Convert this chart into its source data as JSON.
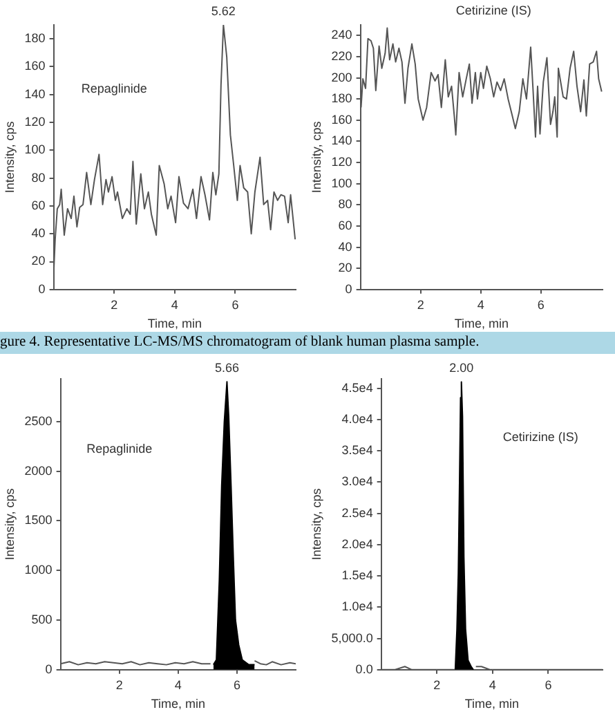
{
  "chart_data": [
    {
      "type": "line",
      "xlabel": "Time, min",
      "ylabel": "Intensity, cps",
      "xlim": [
        0,
        8
      ],
      "xticks": [
        2,
        4,
        6
      ],
      "ylim": [
        0,
        190
      ],
      "yticks": [
        0,
        20,
        40,
        60,
        80,
        100,
        120,
        140,
        160,
        180
      ],
      "grid": false,
      "legend": false,
      "marker": "none",
      "annotations": [
        "Repaglinide",
        {
          "text": "5.62",
          "x": 5.61,
          "y": 190
        }
      ],
      "series": [
        {
          "color": "#555555",
          "x": [
            0,
            0.05,
            0.12,
            0.2,
            0.25,
            0.35,
            0.46,
            0.58,
            0.67,
            0.77,
            0.86,
            0.97,
            1.09,
            1.23,
            1.35,
            1.5,
            1.62,
            1.73,
            1.81,
            1.93,
            2.04,
            2.11,
            2.27,
            2.42,
            2.53,
            2.62,
            2.73,
            2.88,
            3.0,
            3.13,
            3.23,
            3.39,
            3.49,
            3.65,
            3.77,
            3.88,
            4.03,
            4.14,
            4.29,
            4.44,
            4.6,
            4.72,
            4.87,
            5.0,
            5.15,
            5.26,
            5.36,
            5.46,
            5.53,
            5.61,
            5.72,
            5.84,
            5.95,
            6.07,
            6.16,
            6.28,
            6.41,
            6.53,
            6.65,
            6.82,
            6.94,
            7.07,
            7.17,
            7.28,
            7.4,
            7.51,
            7.63,
            7.75,
            7.83,
            7.98
          ],
          "values": [
            11,
            36,
            58,
            61,
            72,
            39,
            58,
            51,
            67,
            45,
            59,
            61,
            84,
            61,
            79,
            97,
            61,
            79,
            70,
            81,
            64,
            70,
            51,
            58,
            54,
            92,
            47,
            83,
            58,
            70,
            54,
            39,
            89,
            76,
            58,
            67,
            48,
            81,
            62,
            58,
            72,
            51,
            81,
            68,
            50,
            84,
            68,
            83,
            147,
            190,
            167,
            111,
            89,
            64,
            89,
            73,
            70,
            40,
            70,
            95,
            61,
            64,
            43,
            70,
            64,
            68,
            67,
            48,
            68,
            36
          ]
        }
      ]
    },
    {
      "type": "line",
      "xlabel": "Time, min",
      "ylabel": "Intensity, cps",
      "xlim": [
        0,
        8.05
      ],
      "xticks": [
        2,
        4,
        6
      ],
      "ylim": [
        0,
        250
      ],
      "yticks": [
        0,
        20,
        40,
        60,
        80,
        100,
        120,
        140,
        160,
        180,
        200,
        220,
        240
      ],
      "grid": false,
      "legend": false,
      "marker": "none",
      "annotations": [
        "Cetirizine (IS)"
      ],
      "series": [
        {
          "color": "#555555",
          "x": [
            0.02,
            0.08,
            0.17,
            0.25,
            0.35,
            0.43,
            0.51,
            0.62,
            0.71,
            0.82,
            0.89,
            0.97,
            1.08,
            1.17,
            1.28,
            1.38,
            1.48,
            1.58,
            1.71,
            1.82,
            1.92,
            2.08,
            2.2,
            2.35,
            2.48,
            2.58,
            2.69,
            2.82,
            2.92,
            3.03,
            3.12,
            3.17,
            3.28,
            3.4,
            3.51,
            3.62,
            3.71,
            3.82,
            3.89,
            4.0,
            4.09,
            4.2,
            4.32,
            4.43,
            4.54,
            4.66,
            4.78,
            4.91,
            5.05,
            5.15,
            5.28,
            5.4,
            5.52,
            5.66,
            5.74,
            5.82,
            5.89,
            5.97,
            6.08,
            6.2,
            6.32,
            6.4,
            6.46,
            6.54,
            6.58,
            6.74,
            6.85,
            6.97,
            7.09,
            7.2,
            7.32,
            7.43,
            7.51,
            7.62,
            7.74,
            7.85,
            7.92,
            8.02
          ],
          "values": [
            172,
            199,
            190,
            237,
            235,
            228,
            188,
            230,
            209,
            223,
            247,
            217,
            232,
            215,
            228,
            215,
            176,
            209,
            232,
            213,
            180,
            160,
            172,
            205,
            197,
            203,
            172,
            217,
            182,
            192,
            164,
            146,
            205,
            182,
            198,
            213,
            176,
            205,
            180,
            205,
            190,
            211,
            199,
            182,
            196,
            188,
            199,
            180,
            164,
            152,
            168,
            199,
            180,
            229,
            188,
            144,
            192,
            147,
            196,
            219,
            156,
            168,
            182,
            144,
            209,
            182,
            180,
            209,
            225,
            192,
            168,
            198,
            164,
            213,
            215,
            225,
            199,
            187
          ]
        }
      ]
    },
    {
      "type": "other",
      "annotations": [
        "gure 4. Representative LC-MS/MS chromatogram of blank human plasma sample."
      ]
    },
    {
      "type": "line",
      "xlabel": "Time, min",
      "ylabel": "Intensity, cps",
      "xlim": [
        0,
        8
      ],
      "xticks": [
        2,
        4,
        6
      ],
      "ylim": [
        0,
        2930
      ],
      "yticks": [
        0,
        500,
        1000,
        1500,
        2000,
        2500
      ],
      "grid": false,
      "legend": false,
      "marker": "none",
      "annotations": [
        "Repaglinide",
        {
          "text": "5.66",
          "x": 5.66,
          "y": 2900
        }
      ],
      "series": [
        {
          "color": "#555555",
          "x": [
            0,
            0.3,
            0.6,
            0.9,
            1.2,
            1.5,
            1.8,
            2.1,
            2.4,
            2.7,
            3.0,
            3.3,
            3.6,
            3.9,
            4.2,
            4.5,
            4.8,
            5.1,
            5.2,
            6.6,
            6.8,
            7.0,
            7.2,
            7.5,
            7.8,
            8.0
          ],
          "values": [
            60,
            80,
            50,
            70,
            60,
            80,
            70,
            60,
            80,
            50,
            70,
            60,
            50,
            70,
            60,
            80,
            60,
            60,
            null,
            90,
            60,
            50,
            80,
            50,
            70,
            60
          ]
        },
        {
          "type": "area",
          "color": "#000000",
          "x": [
            5.2,
            5.3,
            5.4,
            5.48,
            5.57,
            5.66,
            5.72,
            5.8,
            5.88,
            5.95,
            6.06,
            6.18,
            6.4,
            6.6
          ],
          "values": [
            50,
            100,
            900,
            1850,
            2500,
            2900,
            2550,
            1850,
            1100,
            500,
            250,
            100,
            50,
            50
          ]
        }
      ]
    },
    {
      "type": "line",
      "xlabel": "Time, min",
      "ylabel": "Intensity, cps",
      "xlim": [
        0,
        7.95
      ],
      "xticks": [
        2,
        4,
        6
      ],
      "ylim": [
        0,
        46500
      ],
      "yticks": [
        {
          "value": 0,
          "label": "0.0"
        },
        {
          "value": 5000,
          "label": "5,000.0"
        },
        {
          "value": 10000,
          "label": "1.0e4"
        },
        {
          "value": 15000,
          "label": "1.5e4"
        },
        {
          "value": 20000,
          "label": "2.0e4"
        },
        {
          "value": 25000,
          "label": "2.5e4"
        },
        {
          "value": 30000,
          "label": "3.0e4"
        },
        {
          "value": 35000,
          "label": "3.5e4"
        },
        {
          "value": 40000,
          "label": "4.0e4"
        },
        {
          "value": 45000,
          "label": "4.5e4"
        }
      ],
      "grid": false,
      "legend": false,
      "marker": "none",
      "annotations": [
        "Cetirizine (IS)",
        {
          "text": "2.00",
          "x": 2.88,
          "y": 46000
        }
      ],
      "series": [
        {
          "color": "#555555",
          "x": [
            0,
            0.5,
            0.85,
            1.1,
            1.5,
            2.0,
            2.5,
            2.65,
            2.7,
            3.4,
            3.6,
            3.9,
            4.5,
            5.0,
            6.0,
            7.0,
            7.95
          ],
          "values": [
            0,
            0,
            500,
            0,
            0,
            0,
            0,
            0,
            null,
            500,
            500,
            0,
            0,
            0,
            0,
            0,
            0
          ]
        },
        {
          "type": "area",
          "color": "#000000",
          "x": [
            2.66,
            2.72,
            2.77,
            2.81,
            2.85,
            2.88,
            2.92,
            2.97,
            3.03,
            3.12,
            3.23,
            3.31
          ],
          "values": [
            0,
            6500,
            15500,
            29000,
            43500,
            46000,
            40500,
            18000,
            6500,
            1500,
            500,
            0
          ]
        }
      ]
    }
  ]
}
